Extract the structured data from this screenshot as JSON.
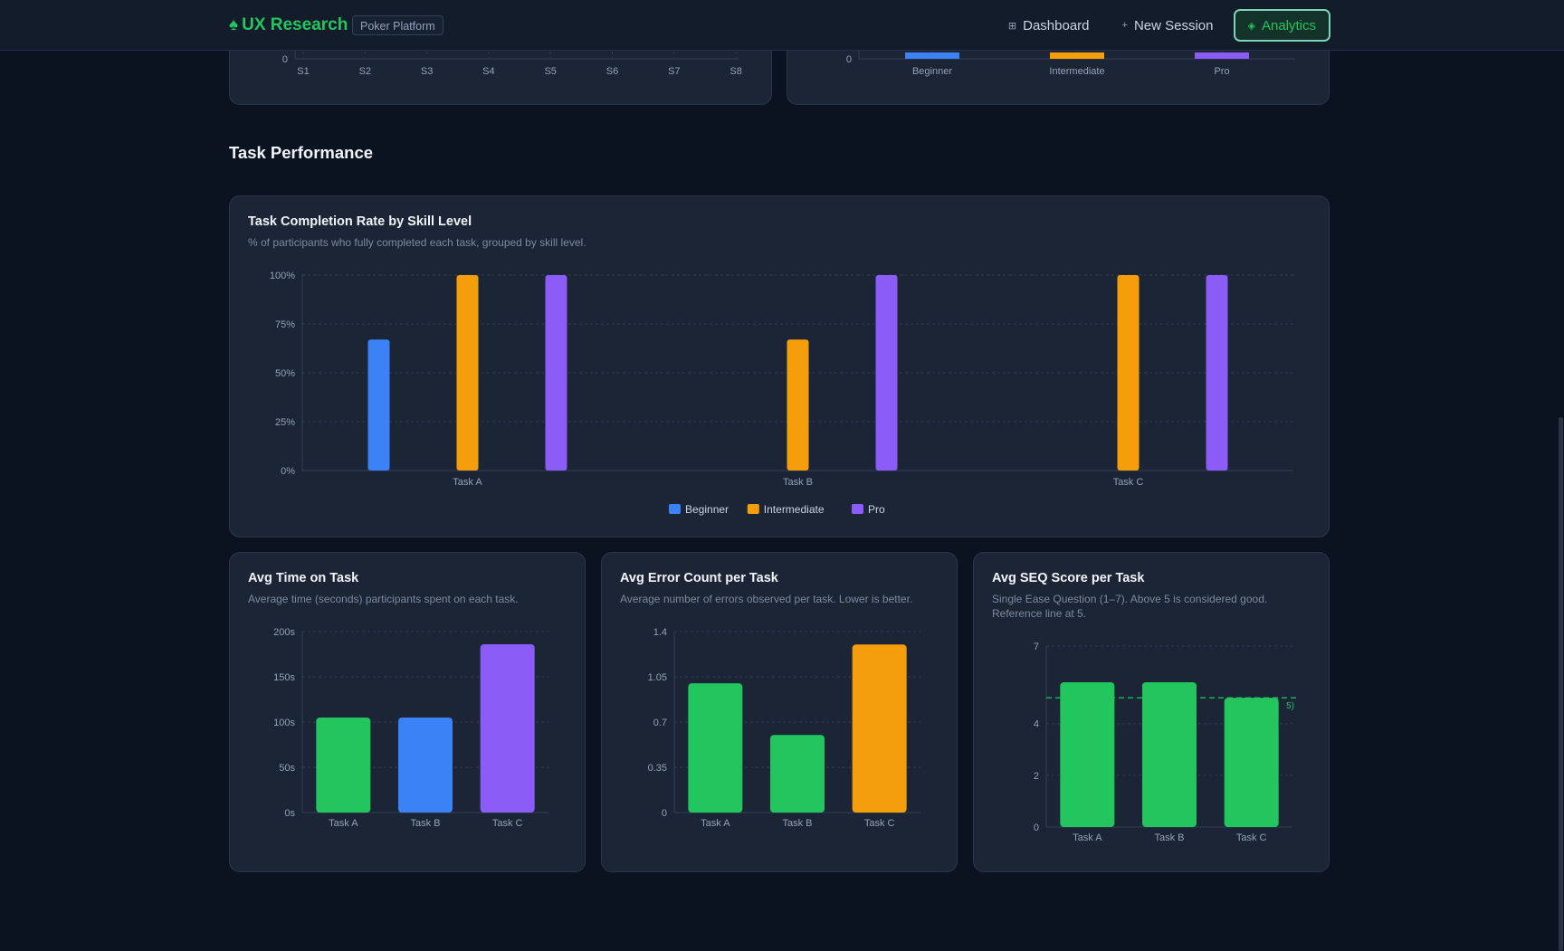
{
  "header": {
    "brand": "UX Research",
    "badge": "Poker Platform",
    "nav": [
      {
        "label": "Dashboard",
        "icon": "⊞"
      },
      {
        "label": "New Session",
        "icon": "+"
      },
      {
        "label": "Analytics",
        "icon": "◈"
      }
    ]
  },
  "section": {
    "title": "Task Performance"
  },
  "colors": {
    "beginner": "#3b82f6",
    "intermediate": "#f59e0b",
    "pro": "#8b5cf6",
    "green": "#22c55e"
  },
  "chart_data": [
    {
      "type": "bar",
      "categories": [
        "S1",
        "S2",
        "S3",
        "S4",
        "S5",
        "S6",
        "S7",
        "S8"
      ],
      "values": [
        0,
        0,
        0,
        0,
        0,
        0,
        0,
        0
      ],
      "title": "",
      "y_visible_ticks": [
        "0"
      ]
    },
    {
      "type": "bar",
      "categories": [
        "Beginner",
        "Intermediate",
        "Pro"
      ],
      "values": [
        0,
        0,
        0
      ],
      "title": "",
      "y_visible_ticks": [
        "0"
      ]
    },
    {
      "type": "bar",
      "title": "Task Completion Rate by Skill Level",
      "subtitle": "% of participants who fully completed each task, grouped by skill level.",
      "categories": [
        "Task A",
        "Task B",
        "Task C"
      ],
      "series": [
        {
          "name": "Beginner",
          "values": [
            67,
            0,
            0
          ]
        },
        {
          "name": "Intermediate",
          "values": [
            100,
            67,
            100
          ]
        },
        {
          "name": "Pro",
          "values": [
            100,
            100,
            100
          ]
        }
      ],
      "ylim": [
        0,
        100
      ],
      "y_ticks": [
        "0%",
        "25%",
        "50%",
        "75%",
        "100%"
      ],
      "legend": "bottom",
      "grid": true
    },
    {
      "type": "bar",
      "title": "Avg Time on Task",
      "subtitle": "Average time (seconds) participants spent on each task.",
      "categories": [
        "Task A",
        "Task B",
        "Task C"
      ],
      "values": [
        105,
        105,
        186
      ],
      "ylim": [
        0,
        200
      ],
      "y_ticks": [
        "0s",
        "50s",
        "100s",
        "150s",
        "200s"
      ],
      "grid": true
    },
    {
      "type": "bar",
      "title": "Avg Error Count per Task",
      "subtitle": "Average number of errors observed per task. Lower is better.",
      "categories": [
        "Task A",
        "Task B",
        "Task C"
      ],
      "values": [
        1.0,
        0.6,
        1.3
      ],
      "ylim": [
        0,
        1.4
      ],
      "y_ticks": [
        "0",
        "0.35",
        "0.7",
        "1.05",
        "1.4"
      ],
      "grid": true
    },
    {
      "type": "bar",
      "title": "Avg SEQ Score per Task",
      "subtitle": "Single Ease Question (1–7). Above 5 is considered good. Reference line at 5.",
      "categories": [
        "Task A",
        "Task B",
        "Task C"
      ],
      "values": [
        5.6,
        5.6,
        5.0
      ],
      "ylim": [
        0,
        7
      ],
      "y_ticks": [
        "0",
        "2",
        "4",
        "7"
      ],
      "reference_line": {
        "value": 5,
        "label_fragment": "5)"
      },
      "grid": true
    }
  ]
}
